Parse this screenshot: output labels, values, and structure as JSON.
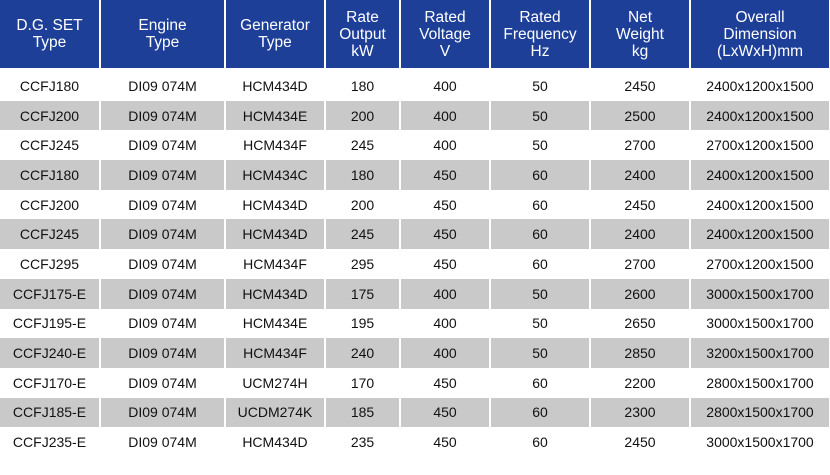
{
  "table": {
    "header": [
      [
        "D.G. SET",
        "Type"
      ],
      [
        "Engine",
        "Type"
      ],
      [
        "Generator",
        "Type"
      ],
      [
        "Rate",
        "Output",
        "kW"
      ],
      [
        "Rated",
        "Voltage",
        "V"
      ],
      [
        "Rated",
        "Frequency",
        "Hz"
      ],
      [
        "Net",
        "Weight",
        "kg"
      ],
      [
        "Overall",
        "Dimension",
        "(LxWxH)mm"
      ]
    ],
    "rows": [
      [
        "CCFJ180",
        "DI09 074M",
        "HCM434D",
        180,
        400,
        50,
        2450,
        "2400x1200x1500"
      ],
      [
        "CCFJ200",
        "DI09 074M",
        "HCM434E",
        200,
        400,
        50,
        2500,
        "2400x1200x1500"
      ],
      [
        "CCFJ245",
        "DI09 074M",
        "HCM434F",
        245,
        400,
        50,
        2700,
        "2700x1200x1500"
      ],
      [
        "CCFJ180",
        "DI09 074M",
        "HCM434C",
        180,
        450,
        60,
        2400,
        "2400x1200x1500"
      ],
      [
        "CCFJ200",
        "DI09 074M",
        "HCM434D",
        200,
        450,
        60,
        2450,
        "2400x1200x1500"
      ],
      [
        "CCFJ245",
        "DI09 074M",
        "HCM434D",
        245,
        450,
        60,
        2400,
        "2400x1200x1500"
      ],
      [
        "CCFJ295",
        "DI09 074M",
        "HCM434F",
        295,
        450,
        60,
        2700,
        "2700x1200x1500"
      ],
      [
        "CCFJ175-E",
        "DI09 074M",
        "HCM434D",
        175,
        400,
        50,
        2600,
        "3000x1500x1700"
      ],
      [
        "CCFJ195-E",
        "DI09 074M",
        "HCM434E",
        195,
        400,
        50,
        2650,
        "3000x1500x1700"
      ],
      [
        "CCFJ240-E",
        "DI09 074M",
        "HCM434F",
        240,
        400,
        50,
        2850,
        "3200x1500x1700"
      ],
      [
        "CCFJ170-E",
        "DI09 074M",
        "UCM274H",
        170,
        450,
        60,
        2200,
        "2800x1500x1700"
      ],
      [
        "CCFJ185-E",
        "DI09 074M",
        "UCDM274K",
        185,
        450,
        60,
        2300,
        "2800x1500x1700"
      ],
      [
        "CCFJ235-E",
        "DI09 074M",
        "HCM434D",
        235,
        450,
        60,
        2450,
        "3000x1500x1700"
      ]
    ]
  }
}
